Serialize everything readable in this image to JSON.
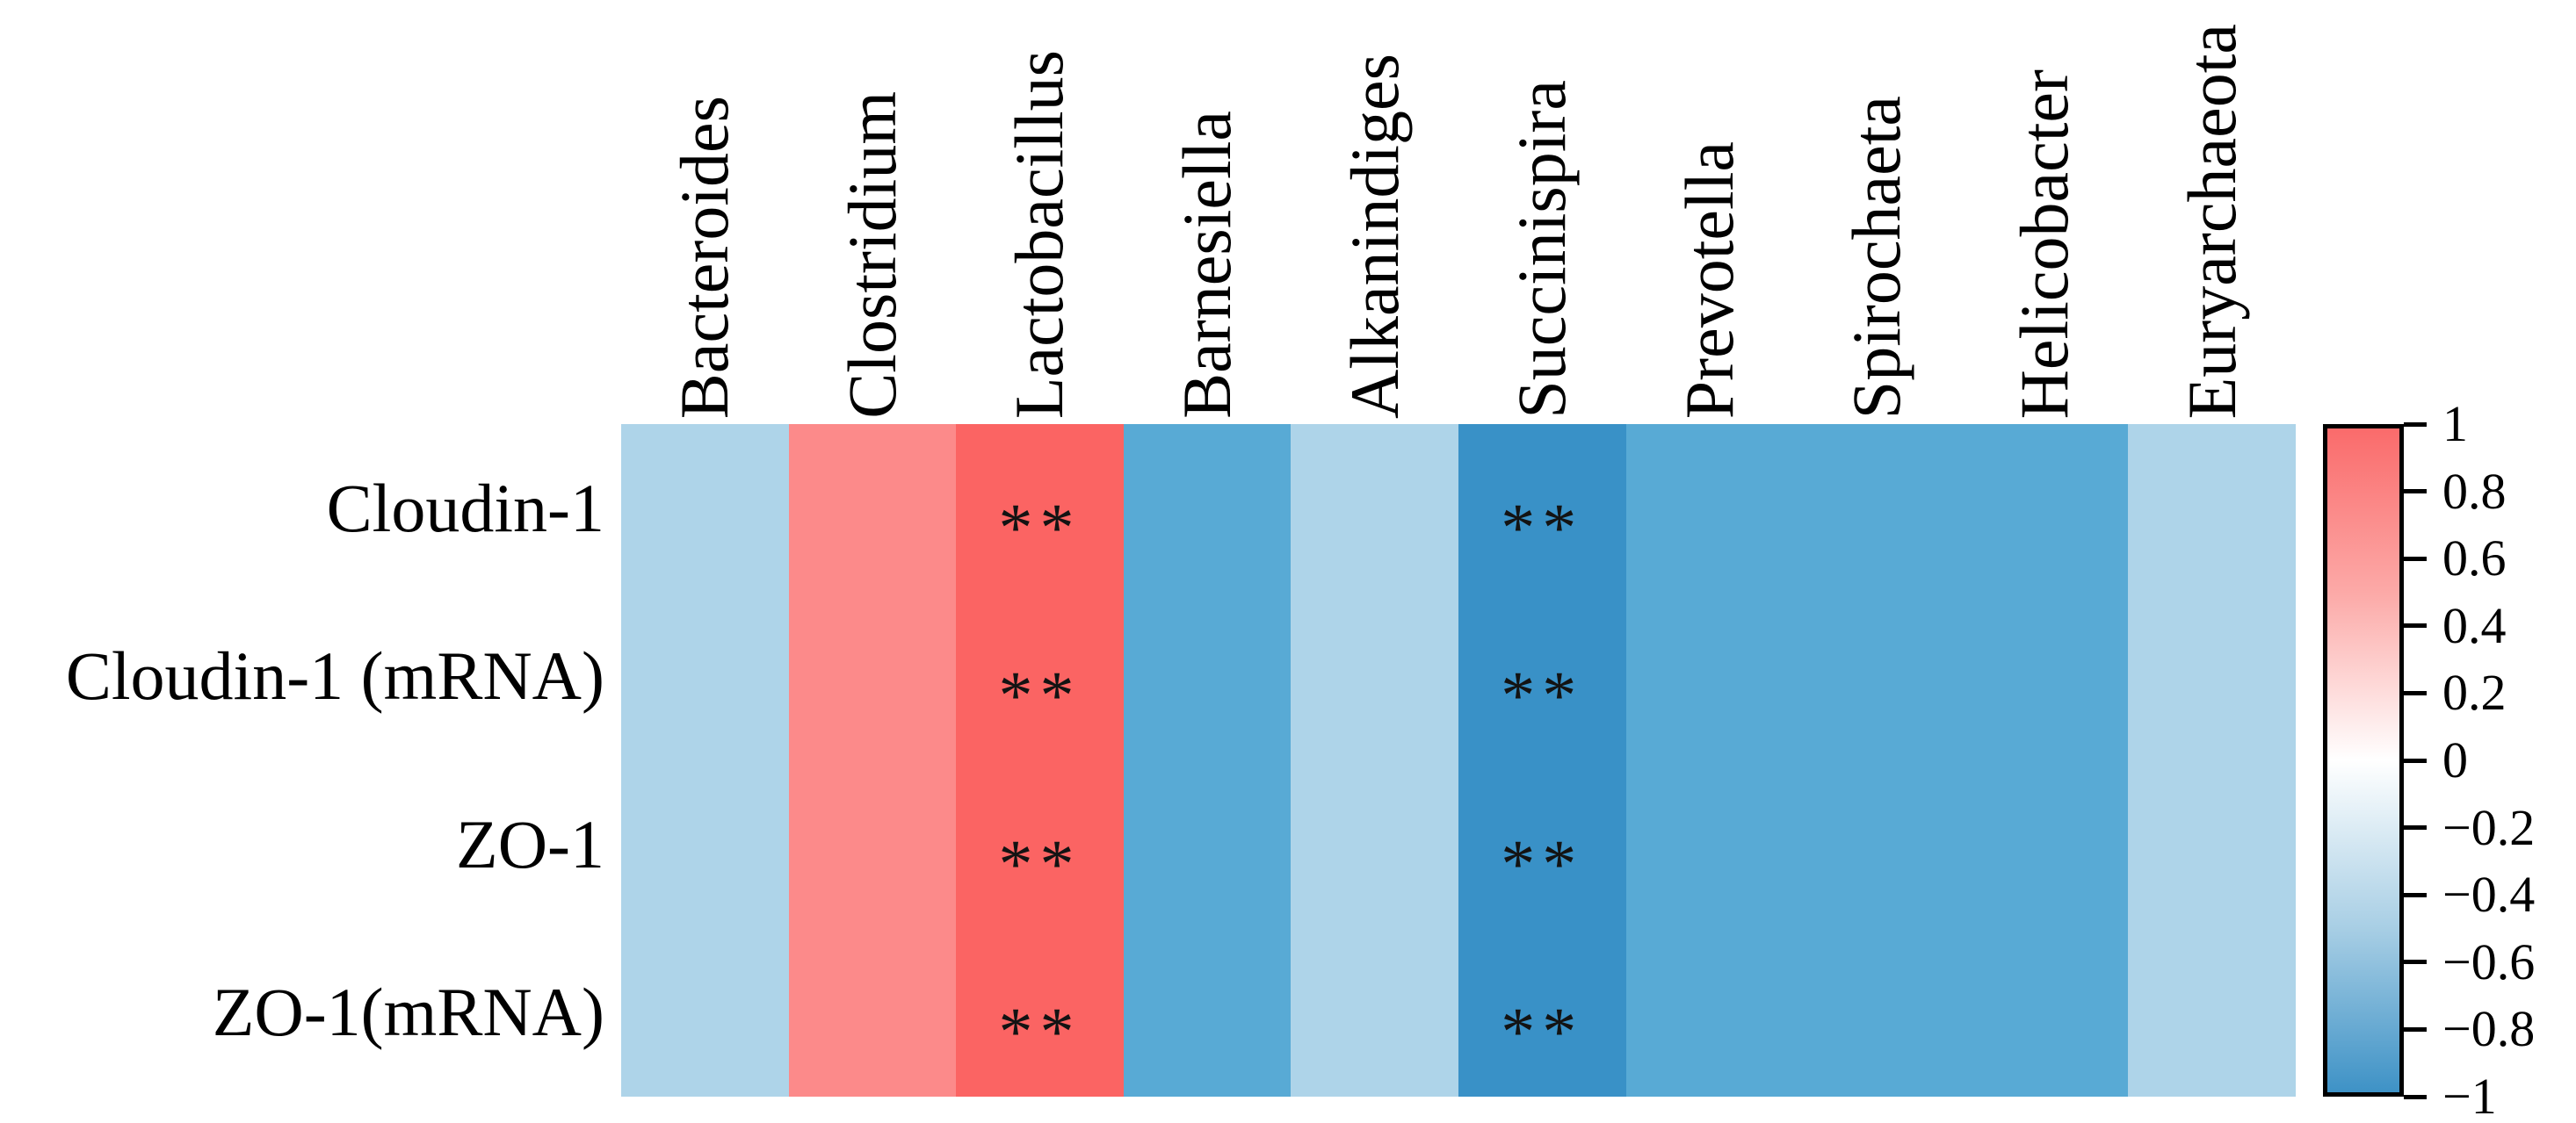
{
  "chart_data": {
    "type": "heatmap",
    "title": "",
    "xlabel": "",
    "ylabel": "",
    "rows": [
      "Cloudin-1",
      "Cloudin-1 (mRNA)",
      "ZO-1",
      "ZO-1(mRNA)"
    ],
    "columns": [
      "Bacteroides",
      "Clostridium",
      "Lactobacillus",
      "Barnesiella",
      "Alkanindiges",
      "Succinispira",
      "Prevotella",
      "Spirochaeta",
      "Helicobacter",
      "Euryarchaeota"
    ],
    "column_values": [
      -0.4,
      0.7,
      0.9,
      -0.7,
      -0.4,
      -0.9,
      -0.7,
      -0.7,
      -0.7,
      -0.4
    ],
    "values": [
      [
        -0.4,
        0.7,
        0.9,
        -0.7,
        -0.4,
        -0.9,
        -0.7,
        -0.7,
        -0.7,
        -0.4
      ],
      [
        -0.4,
        0.7,
        0.9,
        -0.7,
        -0.4,
        -0.9,
        -0.7,
        -0.7,
        -0.7,
        -0.4
      ],
      [
        -0.4,
        0.7,
        0.9,
        -0.7,
        -0.4,
        -0.9,
        -0.7,
        -0.7,
        -0.7,
        -0.4
      ],
      [
        -0.4,
        0.7,
        0.9,
        -0.7,
        -0.4,
        -0.9,
        -0.7,
        -0.7,
        -0.7,
        -0.4
      ]
    ],
    "column_colors": [
      "#aed4e9",
      "#fc8a8a",
      "#fb6463",
      "#58aad5",
      "#aed4e9",
      "#3991c7",
      "#58aad5",
      "#58aad5",
      "#58aad5",
      "#aed4e9"
    ],
    "significance_marker": "**",
    "significant_columns": [
      "Lactobacillus",
      "Succinispira"
    ],
    "significant_cells_note": "marker shown in every row of significant columns",
    "grid": false,
    "colorbar": {
      "position": "right",
      "range": [
        -1,
        1
      ],
      "tick_labels": [
        "1",
        "0.8",
        "0.6",
        "0.4",
        "0.2",
        "0",
        "−0.2",
        "−0.4",
        "−0.6",
        "−0.8",
        "−1"
      ],
      "gradient_stops": [
        {
          "pos": 0,
          "color": "#fa6b6b"
        },
        {
          "pos": 25,
          "color": "#fcaaa8"
        },
        {
          "pos": 50,
          "color": "#ffffff"
        },
        {
          "pos": 75,
          "color": "#a9cfe5"
        },
        {
          "pos": 100,
          "color": "#3e92c6"
        }
      ]
    }
  }
}
